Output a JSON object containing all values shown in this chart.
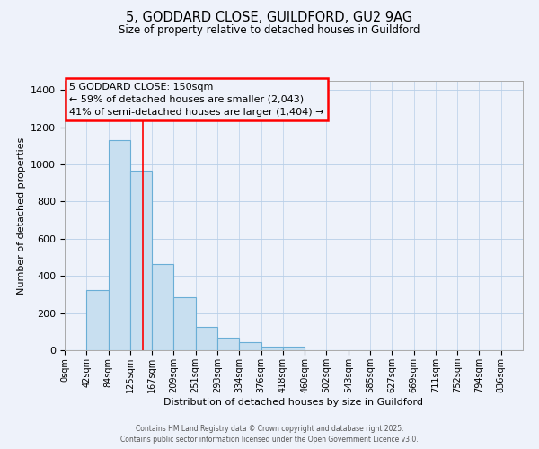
{
  "title": "5, GODDARD CLOSE, GUILDFORD, GU2 9AG",
  "subtitle": "Size of property relative to detached houses in Guildford",
  "xlabel": "Distribution of detached houses by size in Guildford",
  "ylabel": "Number of detached properties",
  "bar_labels": [
    "0sqm",
    "42sqm",
    "84sqm",
    "125sqm",
    "167sqm",
    "209sqm",
    "251sqm",
    "293sqm",
    "334sqm",
    "376sqm",
    "418sqm",
    "460sqm",
    "502sqm",
    "543sqm",
    "585sqm",
    "627sqm",
    "669sqm",
    "711sqm",
    "752sqm",
    "794sqm",
    "836sqm"
  ],
  "bar_values": [
    0,
    325,
    1130,
    965,
    465,
    285,
    125,
    68,
    45,
    20,
    20,
    0,
    0,
    0,
    0,
    0,
    0,
    0,
    0,
    0,
    0
  ],
  "bar_color": "#c8dff0",
  "bar_edge_color": "#6aaed6",
  "background_color": "#eef2fa",
  "ylim": [
    0,
    1450
  ],
  "yticks": [
    0,
    200,
    400,
    600,
    800,
    1000,
    1200,
    1400
  ],
  "property_line_x": 150,
  "bin_width": 42,
  "annotation_title": "5 GODDARD CLOSE: 150sqm",
  "annotation_line1": "← 59% of detached houses are smaller (2,043)",
  "annotation_line2": "41% of semi-detached houses are larger (1,404) →",
  "footer1": "Contains HM Land Registry data © Crown copyright and database right 2025.",
  "footer2": "Contains public sector information licensed under the Open Government Licence v3.0."
}
